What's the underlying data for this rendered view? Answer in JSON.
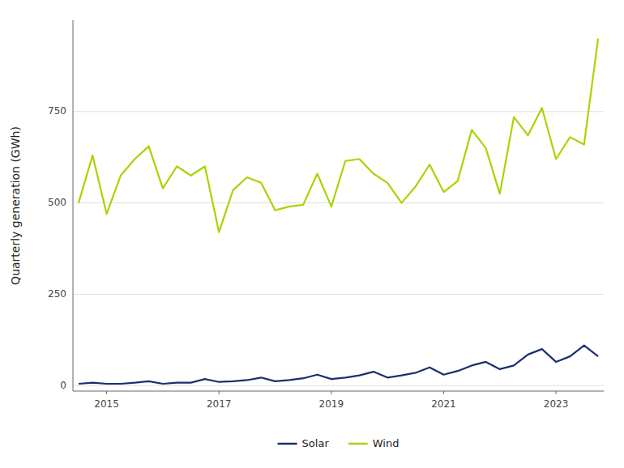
{
  "chart_data": {
    "type": "line",
    "ylabel": "Quarterly generation (GWh)",
    "x": [
      2014.5,
      2014.75,
      2015,
      2015.25,
      2015.5,
      2015.75,
      2016,
      2016.25,
      2016.5,
      2016.75,
      2017,
      2017.25,
      2017.5,
      2017.75,
      2018,
      2018.25,
      2018.5,
      2018.75,
      2019,
      2019.25,
      2019.5,
      2019.75,
      2020,
      2020.25,
      2020.5,
      2020.75,
      2021,
      2021.25,
      2021.5,
      2021.75,
      2022,
      2022.25,
      2022.5,
      2022.75,
      2023,
      2023.25,
      2023.5,
      2023.75
    ],
    "series": [
      {
        "name": "Wind",
        "color": "#a8d400",
        "values": [
          500,
          630,
          470,
          575,
          620,
          655,
          540,
          600,
          575,
          600,
          420,
          535,
          570,
          555,
          480,
          490,
          495,
          580,
          490,
          615,
          620,
          580,
          555,
          500,
          545,
          605,
          530,
          560,
          700,
          650,
          525,
          735,
          685,
          760,
          620,
          680,
          660,
          950
        ]
      },
      {
        "name": "Solar",
        "color": "#1b2f6e",
        "values": [
          5,
          8,
          5,
          5,
          8,
          12,
          5,
          8,
          8,
          18,
          10,
          12,
          15,
          22,
          12,
          15,
          20,
          30,
          18,
          22,
          28,
          38,
          22,
          28,
          35,
          50,
          30,
          40,
          55,
          65,
          45,
          55,
          85,
          100,
          65,
          80,
          110,
          80
        ]
      }
    ],
    "xlim": [
      2014.4,
      2023.85
    ],
    "xticks": [
      2015,
      2017,
      2019,
      2021,
      2023
    ],
    "ylim": [
      -15,
      1000
    ],
    "yticks": [
      0,
      250,
      500,
      750
    ],
    "grid": true,
    "legend": "bottom"
  }
}
